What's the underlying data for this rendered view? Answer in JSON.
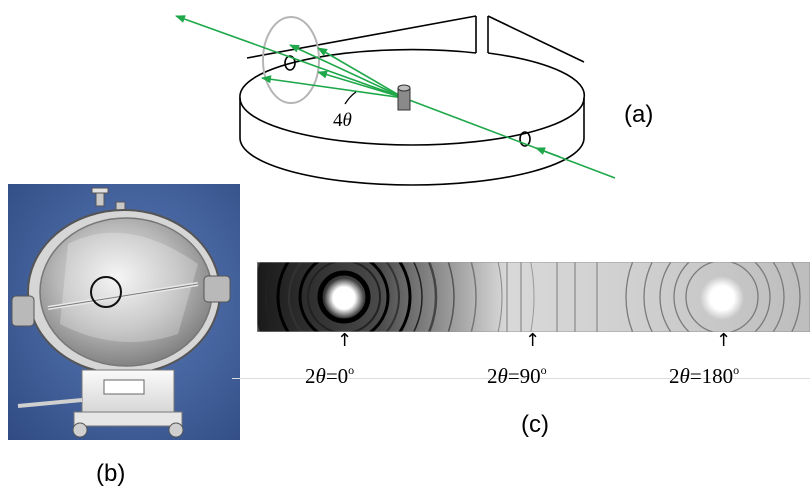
{
  "panel_a": {
    "label": "(a)",
    "angle_label_number": "4",
    "angle_label_symbol": "θ"
  },
  "panel_b": {
    "label": "(b)"
  },
  "panel_c": {
    "label": "(c)",
    "markers": [
      {
        "prefix": "2",
        "symbol": "θ",
        "value": "=0",
        "unit": "o"
      },
      {
        "prefix": "2",
        "symbol": "θ",
        "value": "=90",
        "unit": "o"
      },
      {
        "prefix": "2",
        "symbol": "θ",
        "value": "=180",
        "unit": "o"
      }
    ]
  },
  "colors": {
    "beam": "#1fa84a",
    "outline": "#000000",
    "highlight_circle": "#b5b5b5",
    "photo_background": "#3d5c96"
  }
}
